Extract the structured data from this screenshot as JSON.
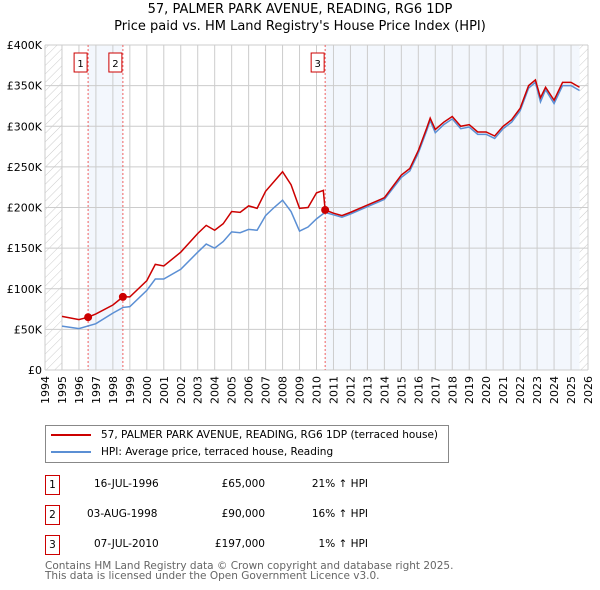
{
  "title": "57, PALMER PARK AVENUE, READING, RG6 1DP",
  "subtitle": "Price paid vs. HM Land Registry's House Price Index (HPI)",
  "chart_data": {
    "type": "line",
    "xlim": [
      1994,
      2026
    ],
    "ylim": [
      0,
      400000
    ],
    "yticks": [
      {
        "v": 0,
        "l": "£0"
      },
      {
        "v": 50000,
        "l": "£50K"
      },
      {
        "v": 100000,
        "l": "£100K"
      },
      {
        "v": 150000,
        "l": "£150K"
      },
      {
        "v": 200000,
        "l": "£200K"
      },
      {
        "v": 250000,
        "l": "£250K"
      },
      {
        "v": 300000,
        "l": "£300K"
      },
      {
        "v": 350000,
        "l": "£350K"
      },
      {
        "v": 400000,
        "l": "£400K"
      }
    ],
    "xticks": [
      "1994",
      "1995",
      "1996",
      "1997",
      "1998",
      "1999",
      "2000",
      "2001",
      "2002",
      "2003",
      "2004",
      "2005",
      "2006",
      "2007",
      "2008",
      "2009",
      "2010",
      "2011",
      "2012",
      "2013",
      "2014",
      "2015",
      "2016",
      "2017",
      "2018",
      "2019",
      "2020",
      "2021",
      "2022",
      "2023",
      "2024",
      "2025",
      "2026"
    ],
    "data_range": [
      1995,
      2025.5
    ],
    "series": [
      {
        "name": "57, PALMER PARK AVENUE, READING, RG6 1DP (terraced house)",
        "color": "#cc0000",
        "x": [
          1995,
          1996,
          1996.54,
          1997,
          1998,
          1998.59,
          1999,
          2000,
          2000.5,
          2001,
          2002,
          2003,
          2003.5,
          2004,
          2004.5,
          2005,
          2005.5,
          2006,
          2006.5,
          2007,
          2007.5,
          2008,
          2008.5,
          2009,
          2009.5,
          2010,
          2010.4,
          2010.51,
          2011,
          2011.5,
          2012,
          2013,
          2014,
          2015,
          2015.5,
          2016,
          2016.5,
          2016.7,
          2017,
          2017.5,
          2018,
          2018.5,
          2019,
          2019.5,
          2020,
          2020.5,
          2021,
          2021.5,
          2022,
          2022.5,
          2022.9,
          2023.2,
          2023.5,
          2024,
          2024.5,
          2025,
          2025.5
        ],
        "y": [
          66000,
          62000,
          65000,
          69000,
          80000,
          90000,
          90000,
          110000,
          130000,
          128000,
          145000,
          168000,
          178000,
          172000,
          180000,
          195000,
          194000,
          202000,
          199000,
          220000,
          232000,
          244000,
          228000,
          199000,
          200000,
          218000,
          221000,
          197000,
          193000,
          190000,
          194000,
          203000,
          212000,
          240000,
          248000,
          270000,
          298000,
          310000,
          296000,
          305000,
          312000,
          300000,
          302000,
          293000,
          293000,
          288000,
          300000,
          308000,
          322000,
          350000,
          357000,
          335000,
          348000,
          332000,
          354000,
          354000,
          348000
        ]
      },
      {
        "name": "HPI: Average price, terraced house, Reading",
        "color": "#5b8fd4",
        "x": [
          1995,
          1996,
          1997,
          1998,
          1998.6,
          1999,
          2000,
          2000.5,
          2001,
          2002,
          2003,
          2003.5,
          2004,
          2004.5,
          2005,
          2005.5,
          2006,
          2006.5,
          2007,
          2007.5,
          2008,
          2008.5,
          2009,
          2009.5,
          2010,
          2010.5,
          2011,
          2011.5,
          2012,
          2013,
          2014,
          2015,
          2015.5,
          2016,
          2016.5,
          2016.7,
          2017,
          2017.5,
          2018,
          2018.5,
          2019,
          2019.5,
          2020,
          2020.5,
          2021,
          2021.5,
          2022,
          2022.5,
          2022.9,
          2023.2,
          2023.5,
          2024,
          2024.5,
          2025,
          2025.5
        ],
        "y": [
          54000,
          51000,
          57000,
          70000,
          77000,
          78000,
          98000,
          112000,
          112000,
          124000,
          145000,
          155000,
          150000,
          158000,
          170000,
          169000,
          173000,
          172000,
          190000,
          200000,
          209000,
          195000,
          171000,
          176000,
          186000,
          194000,
          191000,
          188000,
          192000,
          201000,
          210000,
          237000,
          245000,
          267000,
          295000,
          307000,
          292000,
          302000,
          309000,
          297000,
          299000,
          290000,
          290000,
          285000,
          297000,
          305000,
          319000,
          347000,
          354000,
          330000,
          345000,
          328000,
          350000,
          350000,
          344000
        ]
      }
    ],
    "sales": [
      {
        "label": "1",
        "x": 1996.54,
        "date": "16-JUL-1996",
        "price": 65000,
        "price_text": "£65,000",
        "hpi": "21% ↑ HPI"
      },
      {
        "label": "2",
        "x": 1998.59,
        "date": "03-AUG-1998",
        "price": 90000,
        "price_text": "£90,000",
        "hpi": "16% ↑ HPI"
      },
      {
        "label": "3",
        "x": 2010.51,
        "date": "07-JUL-2010",
        "price": 197000,
        "price_text": "£197,000",
        "hpi": "1% ↑ HPI"
      }
    ]
  },
  "footer": [
    "Contains HM Land Registry data © Crown copyright and database right 2025.",
    "This data is licensed under the Open Government Licence v3.0."
  ]
}
